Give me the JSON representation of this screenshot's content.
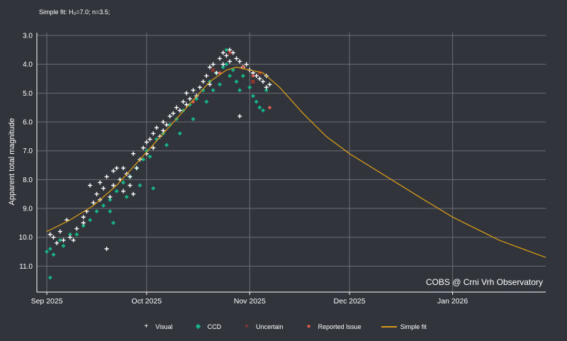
{
  "subtitle": "Simple fit: H₀=7.0; n=3.5;",
  "credit": "COBS @ Crni Vrh Observatory",
  "chart_data": {
    "type": "scatter",
    "ylabel": "Apparent total magnitude",
    "y_reversed": true,
    "ylim": [
      11.9,
      3.0
    ],
    "y_ticks": [
      "3.0",
      "4.0",
      "5.0",
      "6.0",
      "7.0",
      "8.0",
      "9.0",
      "10.0",
      "11.0"
    ],
    "y_tick_values": [
      3,
      4,
      5,
      6,
      7,
      8,
      9,
      10,
      11
    ],
    "xlim": [
      "2025-08-29",
      "2026-01-29"
    ],
    "x_ticks": [
      {
        "date": "2025-09-01",
        "label": "Sep 2025"
      },
      {
        "date": "2025-10-01",
        "label": "Oct 2025"
      },
      {
        "date": "2025-11-01",
        "label": "Nov 2025"
      },
      {
        "date": "2025-12-01",
        "label": "Dec 2025"
      },
      {
        "date": "2026-01-01",
        "label": "Jan 2026"
      }
    ],
    "grid": true,
    "legend_placement": "bottom",
    "series": [
      {
        "name": "Visual",
        "marker": "plus",
        "color": "#ffffff",
        "points": [
          [
            "2025-09-02",
            9.9
          ],
          [
            "2025-09-03",
            10.0
          ],
          [
            "2025-09-04",
            10.2
          ],
          [
            "2025-09-05",
            9.8
          ],
          [
            "2025-09-06",
            10.1
          ],
          [
            "2025-09-07",
            9.4
          ],
          [
            "2025-09-08",
            10.0
          ],
          [
            "2025-09-09",
            10.1
          ],
          [
            "2025-09-10",
            9.7
          ],
          [
            "2025-09-12",
            9.5
          ],
          [
            "2025-09-12",
            9.3
          ],
          [
            "2025-09-13",
            9.1
          ],
          [
            "2025-09-14",
            8.2
          ],
          [
            "2025-09-15",
            8.8
          ],
          [
            "2025-09-16",
            8.5
          ],
          [
            "2025-09-17",
            8.7
          ],
          [
            "2025-09-17",
            8.1
          ],
          [
            "2025-09-18",
            8.3
          ],
          [
            "2025-09-19",
            7.9
          ],
          [
            "2025-09-19",
            10.4
          ],
          [
            "2025-09-20",
            8.6
          ],
          [
            "2025-09-21",
            7.7
          ],
          [
            "2025-09-21",
            8.2
          ],
          [
            "2025-09-22",
            7.6
          ],
          [
            "2025-09-23",
            8.0
          ],
          [
            "2025-09-24",
            8.4
          ],
          [
            "2025-09-24",
            7.6
          ],
          [
            "2025-09-25",
            7.8
          ],
          [
            "2025-09-26",
            7.9
          ],
          [
            "2025-09-26",
            8.2
          ],
          [
            "2025-09-27",
            7.1
          ],
          [
            "2025-09-27",
            8.5
          ],
          [
            "2025-09-28",
            7.6
          ],
          [
            "2025-09-29",
            7.3
          ],
          [
            "2025-09-30",
            6.9
          ],
          [
            "2025-10-01",
            6.7
          ],
          [
            "2025-10-01",
            7.1
          ],
          [
            "2025-10-02",
            6.6
          ],
          [
            "2025-10-03",
            6.4
          ],
          [
            "2025-10-03",
            6.9
          ],
          [
            "2025-10-04",
            6.2
          ],
          [
            "2025-10-05",
            6.5
          ],
          [
            "2025-10-06",
            6.0
          ],
          [
            "2025-10-06",
            6.3
          ],
          [
            "2025-10-07",
            6.1
          ],
          [
            "2025-10-08",
            5.8
          ],
          [
            "2025-10-09",
            5.7
          ],
          [
            "2025-10-10",
            5.5
          ],
          [
            "2025-10-11",
            5.6
          ],
          [
            "2025-10-12",
            5.3
          ],
          [
            "2025-10-13",
            5.4
          ],
          [
            "2025-10-13",
            5.0
          ],
          [
            "2025-10-14",
            5.2
          ],
          [
            "2025-10-15",
            4.9
          ],
          [
            "2025-10-16",
            5.1
          ],
          [
            "2025-10-17",
            4.8
          ],
          [
            "2025-10-18",
            4.6
          ],
          [
            "2025-10-19",
            4.4
          ],
          [
            "2025-10-20",
            4.7
          ],
          [
            "2025-10-20",
            4.1
          ],
          [
            "2025-10-21",
            4.0
          ],
          [
            "2025-10-22",
            4.3
          ],
          [
            "2025-10-23",
            3.8
          ],
          [
            "2025-10-24",
            3.6
          ],
          [
            "2025-10-24",
            4.0
          ],
          [
            "2025-10-25",
            3.7
          ],
          [
            "2025-10-26",
            3.5
          ],
          [
            "2025-10-26",
            3.9
          ],
          [
            "2025-10-27",
            3.6
          ],
          [
            "2025-10-28",
            3.8
          ],
          [
            "2025-10-29",
            3.9
          ],
          [
            "2025-10-30",
            4.1
          ],
          [
            "2025-10-31",
            4.0
          ],
          [
            "2025-11-01",
            4.2
          ],
          [
            "2025-11-02",
            4.3
          ],
          [
            "2025-11-03",
            4.4
          ],
          [
            "2025-11-04",
            4.5
          ],
          [
            "2025-11-05",
            4.6
          ],
          [
            "2025-11-06",
            4.8
          ],
          [
            "2025-11-06",
            4.4
          ],
          [
            "2025-11-07",
            4.7
          ],
          [
            "2025-10-29",
            5.8
          ]
        ]
      },
      {
        "name": "CCD",
        "marker": "diamond",
        "color": "#16b185",
        "points": [
          [
            "2025-09-01",
            10.5
          ],
          [
            "2025-09-02",
            10.4
          ],
          [
            "2025-09-03",
            10.6
          ],
          [
            "2025-09-02",
            11.4
          ],
          [
            "2025-09-05",
            10.1
          ],
          [
            "2025-09-06",
            10.3
          ],
          [
            "2025-09-08",
            9.9
          ],
          [
            "2025-09-10",
            9.9
          ],
          [
            "2025-09-12",
            9.6
          ],
          [
            "2025-09-14",
            9.4
          ],
          [
            "2025-09-16",
            9.1
          ],
          [
            "2025-09-18",
            8.9
          ],
          [
            "2025-09-20",
            8.7
          ],
          [
            "2025-09-20",
            9.1
          ],
          [
            "2025-09-21",
            9.5
          ],
          [
            "2025-09-22",
            8.4
          ],
          [
            "2025-09-24",
            8.1
          ],
          [
            "2025-09-25",
            8.6
          ],
          [
            "2025-09-26",
            7.9
          ],
          [
            "2025-09-28",
            7.6
          ],
          [
            "2025-09-29",
            8.2
          ],
          [
            "2025-09-30",
            7.3
          ],
          [
            "2025-10-01",
            7.0
          ],
          [
            "2025-10-02",
            7.2
          ],
          [
            "2025-10-03",
            8.3
          ],
          [
            "2025-10-04",
            6.6
          ],
          [
            "2025-10-06",
            6.4
          ],
          [
            "2025-10-07",
            6.8
          ],
          [
            "2025-10-08",
            6.1
          ],
          [
            "2025-10-10",
            5.9
          ],
          [
            "2025-10-11",
            6.4
          ],
          [
            "2025-10-12",
            5.6
          ],
          [
            "2025-10-14",
            5.4
          ],
          [
            "2025-10-15",
            5.9
          ],
          [
            "2025-10-16",
            5.2
          ],
          [
            "2025-10-18",
            4.9
          ],
          [
            "2025-10-19",
            5.3
          ],
          [
            "2025-10-20",
            4.6
          ],
          [
            "2025-10-21",
            4.9
          ],
          [
            "2025-10-22",
            4.3
          ],
          [
            "2025-10-23",
            4.7
          ],
          [
            "2025-10-24",
            4.1
          ],
          [
            "2025-10-25",
            4.0
          ],
          [
            "2025-10-25",
            3.5
          ],
          [
            "2025-10-26",
            4.4
          ],
          [
            "2025-10-27",
            4.2
          ],
          [
            "2025-10-28",
            4.6
          ],
          [
            "2025-10-29",
            4.9
          ],
          [
            "2025-10-30",
            4.4
          ],
          [
            "2025-11-01",
            4.8
          ],
          [
            "2025-11-02",
            5.1
          ],
          [
            "2025-11-03",
            5.3
          ],
          [
            "2025-11-04",
            5.5
          ],
          [
            "2025-11-05",
            5.6
          ],
          [
            "2025-11-06",
            4.9
          ]
        ]
      },
      {
        "name": "Uncertain",
        "marker": "x",
        "color": "#c0392b",
        "points": [
          [
            "2025-10-21",
            4.2
          ],
          [
            "2025-10-26",
            3.6
          ],
          [
            "2025-10-30",
            4.1
          ],
          [
            "2025-11-02",
            4.6
          ],
          [
            "2025-11-04",
            4.3
          ]
        ]
      },
      {
        "name": "Reported Issue",
        "marker": "dot",
        "color": "#e05a50",
        "points": [
          [
            "2025-10-15",
            5.3
          ],
          [
            "2025-10-23",
            4.3
          ],
          [
            "2025-11-02",
            4.4
          ],
          [
            "2025-11-07",
            5.5
          ]
        ]
      },
      {
        "name": "Simple fit",
        "marker": "line",
        "color": "#d69a18",
        "points": [
          [
            "2025-09-01",
            9.8
          ],
          [
            "2025-09-08",
            9.4
          ],
          [
            "2025-09-15",
            8.9
          ],
          [
            "2025-09-22",
            8.2
          ],
          [
            "2025-09-29",
            7.3
          ],
          [
            "2025-10-06",
            6.4
          ],
          [
            "2025-10-13",
            5.5
          ],
          [
            "2025-10-20",
            4.6
          ],
          [
            "2025-10-25",
            4.2
          ],
          [
            "2025-10-28",
            4.1
          ],
          [
            "2025-11-01",
            4.2
          ],
          [
            "2025-11-05",
            4.3
          ],
          [
            "2025-11-10",
            4.8
          ],
          [
            "2025-11-17",
            5.7
          ],
          [
            "2025-11-24",
            6.5
          ],
          [
            "2025-12-01",
            7.1
          ],
          [
            "2025-12-08",
            7.6
          ],
          [
            "2025-12-15",
            8.1
          ],
          [
            "2025-12-22",
            8.6
          ],
          [
            "2026-01-01",
            9.3
          ],
          [
            "2026-01-08",
            9.7
          ],
          [
            "2026-01-15",
            10.1
          ],
          [
            "2026-01-22",
            10.4
          ],
          [
            "2026-01-29",
            10.7
          ]
        ]
      }
    ]
  }
}
